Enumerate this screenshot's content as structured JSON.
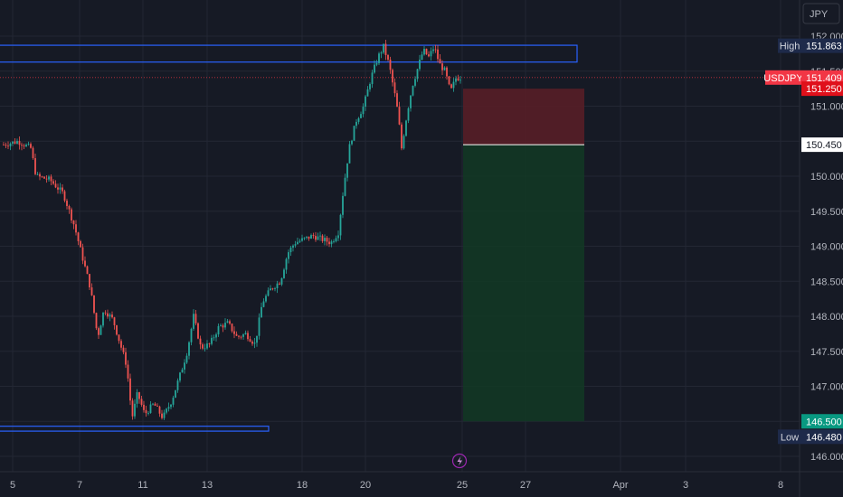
{
  "currency_label": "JPY",
  "symbol": "USDJPY",
  "colors": {
    "background": "#161a25",
    "grid": "#232734",
    "axis_text": "#b2b5be",
    "up": "#26a69a",
    "down": "#ef5350",
    "zone_border": "#2962ff",
    "stop_fill": "#5a1f27",
    "target_fill": "#123a25",
    "price_tag": "#f23645",
    "target_tag": "#089981",
    "high_low_tag": "#1e2a4a"
  },
  "chart_data": {
    "type": "candlestick",
    "y_ticks": [
      "152.000",
      "151.500",
      "151.000",
      "150.500",
      "150.000",
      "149.500",
      "149.000",
      "148.500",
      "148.000",
      "147.500",
      "147.000",
      "146.500",
      "146.000"
    ],
    "x_ticks": [
      "5",
      "7",
      "11",
      "13",
      "18",
      "20",
      "25",
      "27",
      "Apr",
      "3",
      "8"
    ],
    "ylim": [
      145.95,
      152.05
    ],
    "price_path": [
      [
        4,
        150.45
      ],
      [
        20,
        150.5
      ],
      [
        34,
        150.4
      ],
      [
        40,
        150.0
      ],
      [
        55,
        149.95
      ],
      [
        70,
        149.75
      ],
      [
        82,
        149.3
      ],
      [
        92,
        148.8
      ],
      [
        100,
        148.4
      ],
      [
        108,
        147.7
      ],
      [
        115,
        148.1
      ],
      [
        125,
        147.95
      ],
      [
        133,
        147.6
      ],
      [
        140,
        147.3
      ],
      [
        146,
        146.55
      ],
      [
        152,
        146.9
      ],
      [
        160,
        146.6
      ],
      [
        170,
        146.75
      ],
      [
        180,
        146.55
      ],
      [
        190,
        146.8
      ],
      [
        200,
        147.2
      ],
      [
        207,
        147.5
      ],
      [
        214,
        148.0
      ],
      [
        222,
        147.55
      ],
      [
        232,
        147.6
      ],
      [
        242,
        147.85
      ],
      [
        252,
        147.9
      ],
      [
        262,
        147.7
      ],
      [
        272,
        147.75
      ],
      [
        282,
        147.6
      ],
      [
        290,
        148.2
      ],
      [
        300,
        148.4
      ],
      [
        310,
        148.5
      ],
      [
        318,
        148.9
      ],
      [
        326,
        149.05
      ],
      [
        336,
        149.1
      ],
      [
        346,
        149.15
      ],
      [
        356,
        149.1
      ],
      [
        366,
        149.05
      ],
      [
        374,
        149.2
      ],
      [
        380,
        149.85
      ],
      [
        386,
        150.4
      ],
      [
        394,
        150.8
      ],
      [
        402,
        151.0
      ],
      [
        410,
        151.4
      ],
      [
        418,
        151.7
      ],
      [
        424,
        151.85
      ],
      [
        430,
        151.6
      ],
      [
        436,
        151.2
      ],
      [
        440,
        150.9
      ],
      [
        444,
        150.4
      ],
      [
        450,
        150.9
      ],
      [
        456,
        151.3
      ],
      [
        462,
        151.55
      ],
      [
        468,
        151.8
      ],
      [
        474,
        151.7
      ],
      [
        480,
        151.85
      ],
      [
        486,
        151.6
      ],
      [
        492,
        151.5
      ],
      [
        498,
        151.2
      ],
      [
        504,
        151.4
      ],
      [
        510,
        151.41
      ]
    ],
    "high_zone": {
      "top": 151.87,
      "bottom": 151.63
    },
    "low_zone": {
      "top": 146.43,
      "bottom": 146.36
    },
    "position": {
      "entry": 150.45,
      "stop": 151.25,
      "target": 146.5
    },
    "price_labels": {
      "high_label": "High",
      "high_value": "151.863",
      "symbol_value": "151.409",
      "stop_value": "151.250",
      "entry_value": "150.450",
      "target_value": "146.500",
      "low_label": "Low",
      "low_value": "146.480"
    }
  }
}
